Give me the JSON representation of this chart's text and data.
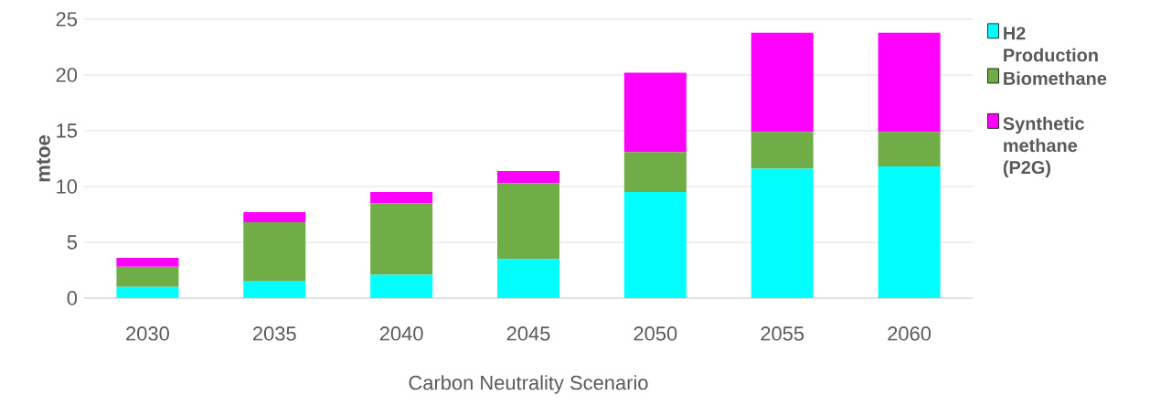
{
  "chart_data": {
    "type": "bar",
    "stacked": true,
    "xlabel": "Carbon Neutrality Scenario",
    "ylabel": "mtoe",
    "categories": [
      "2030",
      "2035",
      "2040",
      "2045",
      "2050",
      "2055",
      "2060"
    ],
    "series": [
      {
        "name": "H2 Production",
        "color": "#00ffff",
        "values": [
          1.0,
          1.5,
          2.1,
          3.5,
          9.5,
          11.6,
          11.8
        ]
      },
      {
        "name": "Biomethane",
        "color": "#70ad47",
        "values": [
          1.8,
          5.3,
          6.4,
          6.8,
          3.6,
          3.3,
          3.1
        ]
      },
      {
        "name": "Synthetic methane (P2G)",
        "color": "#ff00ff",
        "values": [
          0.8,
          0.9,
          1.0,
          1.1,
          7.1,
          8.9,
          8.9
        ]
      }
    ],
    "ylim": [
      0,
      25
    ],
    "yticks": [
      0,
      5,
      10,
      15,
      20,
      25
    ],
    "grid": "y",
    "legend": "right"
  }
}
